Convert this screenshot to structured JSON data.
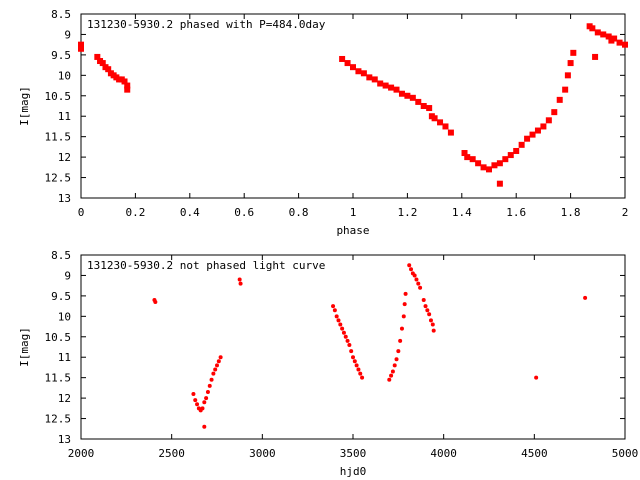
{
  "chart_data": [
    {
      "type": "scatter",
      "title": "131230-5930.2 phased with P=484.0day",
      "xlabel": "phase",
      "ylabel": "I[mag]",
      "xlim": [
        0,
        2
      ],
      "ylim": [
        13,
        8.5
      ],
      "y_inverted": true,
      "grid": false,
      "point_color": "#ff0000",
      "x_ticks": [
        0,
        0.2,
        0.4,
        0.6,
        0.8,
        1,
        1.2,
        1.4,
        1.6,
        1.8,
        2
      ],
      "x_tick_labels": [
        "0",
        "0.2",
        "0.4",
        "0.6",
        "0.8",
        "1",
        "1.2",
        "1.4",
        "1.6",
        "1.8",
        "2"
      ],
      "y_ticks": [
        8.5,
        9,
        9.5,
        10,
        10.5,
        11,
        11.5,
        12,
        12.5,
        13
      ],
      "y_tick_labels": [
        "8.5",
        "9",
        "9.5",
        "10",
        "10.5",
        "11",
        "11.5",
        "12",
        "12.5",
        "13"
      ],
      "series": [
        {
          "values": [
            [
              0.0,
              9.25
            ],
            [
              0.0,
              9.35
            ],
            [
              0.06,
              9.55
            ],
            [
              0.07,
              9.65
            ],
            [
              0.08,
              9.7
            ],
            [
              0.09,
              9.8
            ],
            [
              0.1,
              9.85
            ],
            [
              0.11,
              9.95
            ],
            [
              0.12,
              10.0
            ],
            [
              0.13,
              10.05
            ],
            [
              0.14,
              10.1
            ],
            [
              0.15,
              10.1
            ],
            [
              0.16,
              10.15
            ],
            [
              0.17,
              10.25
            ],
            [
              0.17,
              10.35
            ],
            [
              0.96,
              9.6
            ],
            [
              0.98,
              9.7
            ],
            [
              1.0,
              9.8
            ],
            [
              1.02,
              9.9
            ],
            [
              1.04,
              9.95
            ],
            [
              1.06,
              10.05
            ],
            [
              1.08,
              10.1
            ],
            [
              1.1,
              10.2
            ],
            [
              1.12,
              10.25
            ],
            [
              1.14,
              10.3
            ],
            [
              1.16,
              10.35
            ],
            [
              1.18,
              10.45
            ],
            [
              1.2,
              10.5
            ],
            [
              1.22,
              10.55
            ],
            [
              1.24,
              10.65
            ],
            [
              1.26,
              10.75
            ],
            [
              1.28,
              10.8
            ],
            [
              1.29,
              11.0
            ],
            [
              1.3,
              11.05
            ],
            [
              1.32,
              11.15
            ],
            [
              1.34,
              11.25
            ],
            [
              1.36,
              11.4
            ],
            [
              1.41,
              11.9
            ],
            [
              1.42,
              12.0
            ],
            [
              1.44,
              12.05
            ],
            [
              1.46,
              12.15
            ],
            [
              1.48,
              12.25
            ],
            [
              1.5,
              12.3
            ],
            [
              1.52,
              12.2
            ],
            [
              1.54,
              12.15
            ],
            [
              1.54,
              12.65
            ],
            [
              1.56,
              12.05
            ],
            [
              1.58,
              11.95
            ],
            [
              1.6,
              11.85
            ],
            [
              1.62,
              11.7
            ],
            [
              1.64,
              11.55
            ],
            [
              1.66,
              11.45
            ],
            [
              1.68,
              11.35
            ],
            [
              1.7,
              11.25
            ],
            [
              1.72,
              11.1
            ],
            [
              1.74,
              10.9
            ],
            [
              1.76,
              10.6
            ],
            [
              1.78,
              10.35
            ],
            [
              1.79,
              10.0
            ],
            [
              1.8,
              9.7
            ],
            [
              1.81,
              9.45
            ],
            [
              1.87,
              8.8
            ],
            [
              1.88,
              8.85
            ],
            [
              1.89,
              9.55
            ],
            [
              1.9,
              8.95
            ],
            [
              1.92,
              9.0
            ],
            [
              1.94,
              9.05
            ],
            [
              1.95,
              9.15
            ],
            [
              1.96,
              9.1
            ],
            [
              1.98,
              9.2
            ],
            [
              2.0,
              9.25
            ]
          ]
        }
      ]
    },
    {
      "type": "scatter",
      "title": "131230-5930.2 not phased light curve",
      "xlabel": "hjd0",
      "ylabel": "I[mag]",
      "xlim": [
        2000,
        5000
      ],
      "ylim": [
        13,
        8.5
      ],
      "y_inverted": true,
      "grid": false,
      "point_color": "#ff0000",
      "x_ticks": [
        2000,
        2500,
        3000,
        3500,
        4000,
        4500,
        5000
      ],
      "x_tick_labels": [
        "2000",
        "2500",
        "3000",
        "3500",
        "4000",
        "4500",
        "5000"
      ],
      "y_ticks": [
        8.5,
        9,
        9.5,
        10,
        10.5,
        11,
        11.5,
        12,
        12.5,
        13
      ],
      "y_tick_labels": [
        "8.5",
        "9",
        "9.5",
        "10",
        "10.5",
        "11",
        "11.5",
        "12",
        "12.5",
        "13"
      ],
      "series": [
        {
          "values": [
            [
              2405,
              9.6
            ],
            [
              2410,
              9.65
            ],
            [
              2620,
              11.9
            ],
            [
              2630,
              12.05
            ],
            [
              2640,
              12.15
            ],
            [
              2650,
              12.25
            ],
            [
              2660,
              12.3
            ],
            [
              2670,
              12.25
            ],
            [
              2680,
              12.1
            ],
            [
              2680,
              12.7
            ],
            [
              2690,
              12.0
            ],
            [
              2700,
              11.85
            ],
            [
              2710,
              11.7
            ],
            [
              2720,
              11.55
            ],
            [
              2730,
              11.4
            ],
            [
              2740,
              11.3
            ],
            [
              2750,
              11.2
            ],
            [
              2760,
              11.1
            ],
            [
              2770,
              11.0
            ],
            [
              2875,
              9.1
            ],
            [
              2880,
              9.2
            ],
            [
              3390,
              9.75
            ],
            [
              3400,
              9.85
            ],
            [
              3410,
              10.0
            ],
            [
              3420,
              10.1
            ],
            [
              3430,
              10.2
            ],
            [
              3440,
              10.3
            ],
            [
              3450,
              10.4
            ],
            [
              3460,
              10.5
            ],
            [
              3470,
              10.6
            ],
            [
              3480,
              10.7
            ],
            [
              3490,
              10.85
            ],
            [
              3500,
              11.0
            ],
            [
              3510,
              11.1
            ],
            [
              3520,
              11.2
            ],
            [
              3530,
              11.3
            ],
            [
              3540,
              11.4
            ],
            [
              3550,
              11.5
            ],
            [
              3700,
              11.55
            ],
            [
              3710,
              11.45
            ],
            [
              3720,
              11.35
            ],
            [
              3730,
              11.2
            ],
            [
              3740,
              11.05
            ],
            [
              3750,
              10.85
            ],
            [
              3760,
              10.6
            ],
            [
              3770,
              10.3
            ],
            [
              3780,
              10.0
            ],
            [
              3785,
              9.7
            ],
            [
              3790,
              9.45
            ],
            [
              3810,
              8.75
            ],
            [
              3820,
              8.85
            ],
            [
              3830,
              8.95
            ],
            [
              3840,
              9.0
            ],
            [
              3850,
              9.1
            ],
            [
              3860,
              9.2
            ],
            [
              3870,
              9.3
            ],
            [
              3890,
              9.6
            ],
            [
              3900,
              9.75
            ],
            [
              3910,
              9.85
            ],
            [
              3920,
              9.95
            ],
            [
              3930,
              10.1
            ],
            [
              3940,
              10.2
            ],
            [
              3945,
              10.35
            ],
            [
              4510,
              11.5
            ],
            [
              4780,
              9.55
            ]
          ]
        }
      ]
    }
  ]
}
